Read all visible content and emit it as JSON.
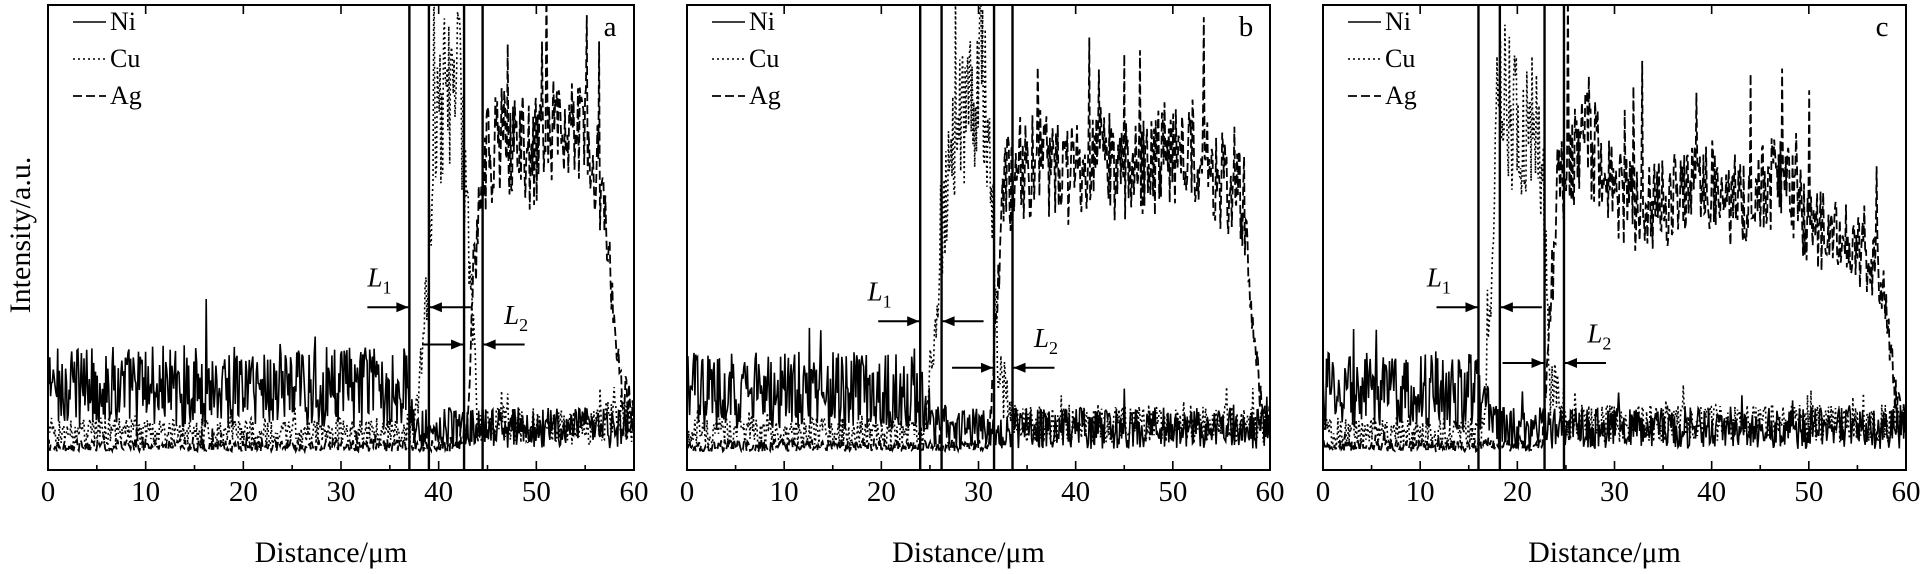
{
  "chart_data": [
    {
      "type": "line",
      "panel_label": "a",
      "xlabel": "Distance/μm",
      "ylabel": "Intensity/a.u.",
      "xlim": [
        0,
        60
      ],
      "ylim": [
        0,
        100
      ],
      "x_ticks": [
        "0",
        "10",
        "20",
        "30",
        "40",
        "50",
        "60"
      ],
      "grid": false,
      "legend": {
        "placement": "top-left",
        "entries": [
          "Ni",
          "Cu",
          "Ag"
        ]
      },
      "interfaces_x": [
        37,
        39,
        42.6,
        44.5
      ],
      "annotations": [
        {
          "text": "L",
          "sub": "1",
          "x": 36.6,
          "y": 39
        },
        {
          "text": "L",
          "sub": "2",
          "x": 46.5,
          "y": 31
        }
      ],
      "series": [
        {
          "name": "Ni",
          "x": [
            0,
            36,
            36.8,
            37.2,
            39,
            60
          ],
          "y": [
            18,
            18,
            17,
            10,
            9,
            9
          ]
        },
        {
          "name": "Cu",
          "x": [
            0,
            36.5,
            37.8,
            38.8,
            39.5,
            40.5,
            41.5,
            42.3,
            43,
            44,
            55.5,
            57,
            58,
            60
          ],
          "y": [
            8,
            8,
            12,
            38,
            72,
            80,
            86,
            78,
            55,
            10,
            9,
            10,
            14,
            9
          ]
        },
        {
          "name": "Ag",
          "x": [
            0,
            42,
            43,
            43.6,
            45,
            47,
            49.5,
            51.5,
            53,
            54.5,
            56,
            57,
            58,
            59,
            60
          ],
          "y": [
            5,
            5,
            10,
            45,
            68,
            72,
            67,
            72,
            70,
            74,
            66,
            55,
            30,
            16,
            12
          ]
        }
      ]
    },
    {
      "type": "line",
      "panel_label": "b",
      "xlabel": "Distance/μm",
      "ylabel": "",
      "xlim": [
        0,
        60
      ],
      "ylim": [
        0,
        100
      ],
      "x_ticks": [
        "0",
        "10",
        "20",
        "30",
        "40",
        "50",
        "60"
      ],
      "grid": false,
      "legend": {
        "placement": "top-left",
        "entries": [
          "Ni",
          "Cu",
          "Ag"
        ]
      },
      "interfaces_x": [
        24,
        26.2,
        31.6,
        33.5
      ],
      "annotations": [
        {
          "text": "L",
          "sub": "1",
          "x": 22.5,
          "y": 36
        },
        {
          "text": "L",
          "sub": "2",
          "x": 35.5,
          "y": 26
        }
      ],
      "series": [
        {
          "name": "Ni",
          "x": [
            0,
            23.5,
            24.3,
            25.5,
            26.5,
            60
          ],
          "y": [
            17,
            17,
            14,
            10,
            9,
            9
          ]
        },
        {
          "name": "Cu",
          "x": [
            0,
            24.5,
            25.5,
            26.5,
            27.5,
            28.5,
            29.5,
            30.5,
            31.3,
            32,
            33.5,
            60
          ],
          "y": [
            8,
            8,
            30,
            58,
            70,
            74,
            80,
            86,
            66,
            22,
            10,
            10
          ]
        },
        {
          "name": "Ag",
          "x": [
            0,
            31,
            31.8,
            32.6,
            34,
            36.5,
            39,
            42,
            45,
            48,
            51,
            53,
            55,
            57,
            58,
            59,
            60
          ],
          "y": [
            5,
            5,
            30,
            60,
            64,
            66,
            62,
            67,
            64,
            66,
            70,
            66,
            62,
            58,
            40,
            15,
            12
          ]
        }
      ]
    },
    {
      "type": "line",
      "panel_label": "c",
      "xlabel": "Distance/μm",
      "ylabel": "",
      "xlim": [
        0,
        60
      ],
      "ylim": [
        0,
        100
      ],
      "x_ticks": [
        "0",
        "10",
        "20",
        "30",
        "40",
        "50",
        "60"
      ],
      "grid": false,
      "legend": {
        "placement": "top-left",
        "entries": [
          "Ni",
          "Cu",
          "Ag"
        ]
      },
      "interfaces_x": [
        16,
        18.2,
        22.8,
        24.8
      ],
      "annotations": [
        {
          "text": "L",
          "sub": "1",
          "x": 14.6,
          "y": 39
        },
        {
          "text": "L",
          "sub": "2",
          "x": 27,
          "y": 27
        }
      ],
      "series": [
        {
          "name": "Ni",
          "x": [
            0,
            15.8,
            16.5,
            17.5,
            18.5,
            60
          ],
          "y": [
            17,
            17,
            14,
            10,
            9,
            9
          ]
        },
        {
          "name": "Cu",
          "x": [
            0,
            16.5,
            17.3,
            18,
            19,
            20,
            21,
            22,
            22.6,
            23.3,
            25,
            60
          ],
          "y": [
            8,
            8,
            40,
            82,
            78,
            76,
            74,
            80,
            66,
            20,
            10,
            10
          ]
        },
        {
          "name": "Ag",
          "x": [
            0,
            22.5,
            23.3,
            24.2,
            25.5,
            27.5,
            30,
            33,
            36,
            39,
            42,
            45,
            47.5,
            50,
            53,
            55,
            57,
            58,
            59,
            60
          ],
          "y": [
            5,
            5,
            30,
            62,
            68,
            70,
            60,
            55,
            58,
            62,
            58,
            60,
            62,
            52,
            50,
            48,
            44,
            34,
            14,
            12
          ]
        }
      ]
    }
  ]
}
